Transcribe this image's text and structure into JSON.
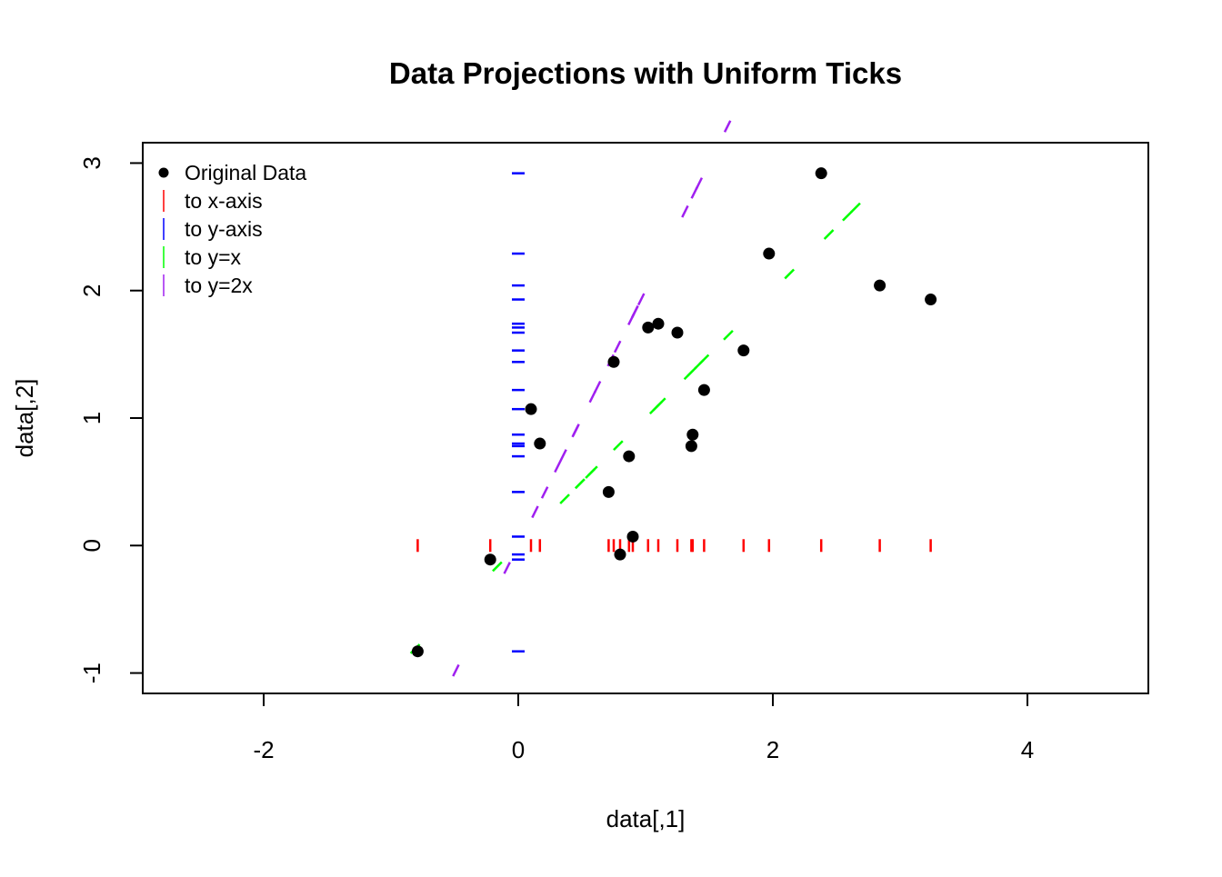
{
  "chart_data": {
    "type": "scatter",
    "title": "Data Projections with Uniform Ticks",
    "xlabel": "data[,1]",
    "ylabel": "data[,2]",
    "xlim": [
      -2.95,
      4.95
    ],
    "ylim": [
      -1.16,
      3.16
    ],
    "xticks": [
      -2,
      0,
      2,
      4
    ],
    "xtick_labels": [
      "-2",
      "0",
      "2",
      "4"
    ],
    "yticks": [
      -1,
      0,
      1,
      2,
      3
    ],
    "ytick_labels": [
      "-1",
      "0",
      "1",
      "2",
      "3"
    ],
    "grid": false,
    "legend_position": "top-left",
    "series": [
      {
        "name": "Original Data",
        "kind": "points",
        "color": "#000000",
        "x": [
          -0.79,
          -0.22,
          0.1,
          0.17,
          0.71,
          0.75,
          0.8,
          0.87,
          0.9,
          1.02,
          1.1,
          1.25,
          1.36,
          1.37,
          1.46,
          1.77,
          1.97,
          2.38,
          2.84,
          3.24
        ],
        "y": [
          -0.83,
          -0.11,
          1.07,
          0.8,
          0.42,
          1.44,
          -0.07,
          0.7,
          0.07,
          1.71,
          1.74,
          1.67,
          0.78,
          0.87,
          1.22,
          1.53,
          2.29,
          2.92,
          2.04,
          1.93
        ]
      },
      {
        "name": "to x-axis",
        "kind": "projection-x",
        "color": "#ff0000"
      },
      {
        "name": "to y-axis",
        "kind": "projection-y",
        "color": "#0000ff"
      },
      {
        "name": "to y=x",
        "kind": "projection-line",
        "slope": 1,
        "color": "#00ff00"
      },
      {
        "name": "to y=2x",
        "kind": "projection-line",
        "slope": 2,
        "color": "#a020f0"
      }
    ]
  }
}
